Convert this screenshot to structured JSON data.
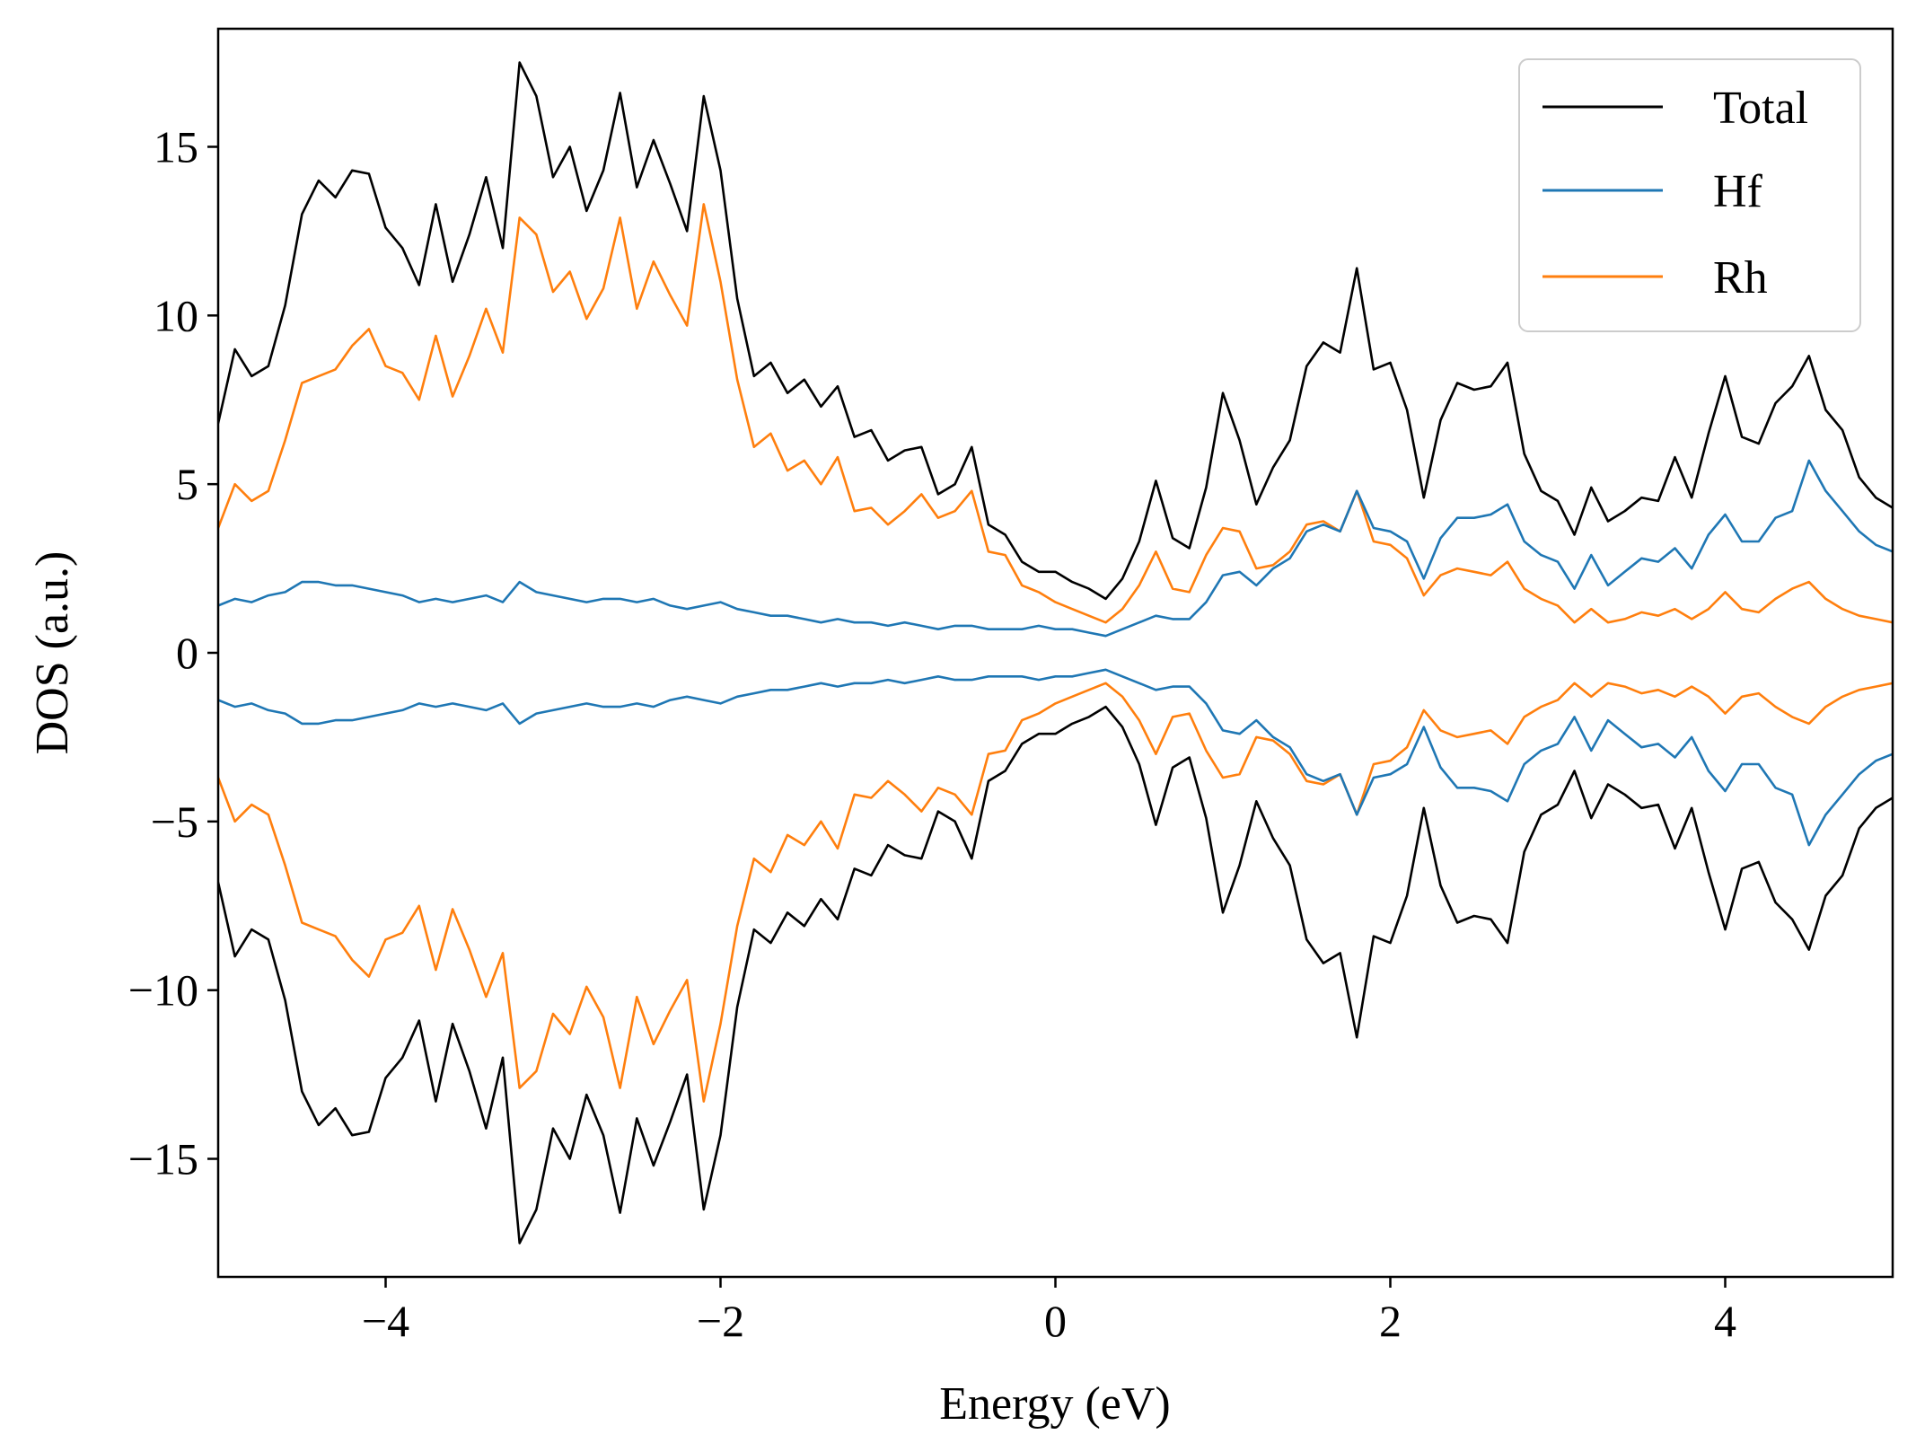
{
  "chart_data": {
    "type": "line",
    "title": "",
    "xlabel": "Energy (eV)",
    "ylabel": "DOS (a.u.)",
    "xlim": [
      -5,
      5
    ],
    "ylim": [
      -18.5,
      18.5
    ],
    "xticks": [
      -4,
      -2,
      0,
      2,
      4
    ],
    "xtick_labels": [
      "−4",
      "−2",
      "0",
      "2",
      "4"
    ],
    "yticks": [
      -15,
      -10,
      -5,
      0,
      5,
      10,
      15
    ],
    "ytick_labels": [
      "−15",
      "−10",
      "−5",
      "0",
      "5",
      "10",
      "15"
    ],
    "grid": false,
    "legend_position": "top-right",
    "note": "spin-down curves are the mirror image (y → −y) of the spin-up values listed",
    "series": [
      {
        "name": "Total",
        "color": "#000000",
        "x": [
          -5.0,
          -4.9,
          -4.8,
          -4.7,
          -4.6,
          -4.5,
          -4.4,
          -4.3,
          -4.2,
          -4.1,
          -4.0,
          -3.9,
          -3.8,
          -3.7,
          -3.6,
          -3.5,
          -3.4,
          -3.3,
          -3.2,
          -3.1,
          -3.0,
          -2.9,
          -2.8,
          -2.7,
          -2.6,
          -2.5,
          -2.4,
          -2.3,
          -2.2,
          -2.1,
          -2.0,
          -1.9,
          -1.8,
          -1.7,
          -1.6,
          -1.5,
          -1.4,
          -1.3,
          -1.2,
          -1.1,
          -1.0,
          -0.9,
          -0.8,
          -0.7,
          -0.6,
          -0.5,
          -0.4,
          -0.3,
          -0.2,
          -0.1,
          0.0,
          0.1,
          0.2,
          0.3,
          0.4,
          0.5,
          0.6,
          0.7,
          0.8,
          0.9,
          1.0,
          1.1,
          1.2,
          1.3,
          1.4,
          1.5,
          1.6,
          1.7,
          1.8,
          1.9,
          2.0,
          2.1,
          2.2,
          2.3,
          2.4,
          2.5,
          2.6,
          2.7,
          2.8,
          2.9,
          3.0,
          3.1,
          3.2,
          3.3,
          3.4,
          3.5,
          3.6,
          3.7,
          3.8,
          3.9,
          4.0,
          4.1,
          4.2,
          4.3,
          4.4,
          4.5,
          4.6,
          4.7,
          4.8,
          4.9,
          5.0
        ],
        "values": [
          6.8,
          9.0,
          8.2,
          8.5,
          10.3,
          13.0,
          14.0,
          13.5,
          14.3,
          14.2,
          12.6,
          12.0,
          10.9,
          13.3,
          11.0,
          12.4,
          14.1,
          12.0,
          17.5,
          16.5,
          14.1,
          15.0,
          13.1,
          14.3,
          16.6,
          13.8,
          15.2,
          13.9,
          12.5,
          16.5,
          14.3,
          10.5,
          8.2,
          8.6,
          7.7,
          8.1,
          7.3,
          7.9,
          6.4,
          6.6,
          5.7,
          6.0,
          6.1,
          4.7,
          5.0,
          6.1,
          3.8,
          3.5,
          2.7,
          2.4,
          2.4,
          2.1,
          1.9,
          1.6,
          2.2,
          3.3,
          5.1,
          3.4,
          3.1,
          4.9,
          7.7,
          6.3,
          4.4,
          5.5,
          6.3,
          8.5,
          9.2,
          8.9,
          11.4,
          8.4,
          8.6,
          7.2,
          4.6,
          6.9,
          8.0,
          7.8,
          7.9,
          8.6,
          5.9,
          4.8,
          4.5,
          3.5,
          4.9,
          3.9,
          4.2,
          4.6,
          4.5,
          5.8,
          4.6,
          6.5,
          8.2,
          6.4,
          6.2,
          7.4,
          7.9,
          8.8,
          7.2,
          6.6,
          5.2,
          4.6,
          4.3
        ]
      },
      {
        "name": "Hf",
        "color": "#1f77b4",
        "x": [
          -5.0,
          -4.9,
          -4.8,
          -4.7,
          -4.6,
          -4.5,
          -4.4,
          -4.3,
          -4.2,
          -4.1,
          -4.0,
          -3.9,
          -3.8,
          -3.7,
          -3.6,
          -3.5,
          -3.4,
          -3.3,
          -3.2,
          -3.1,
          -3.0,
          -2.9,
          -2.8,
          -2.7,
          -2.6,
          -2.5,
          -2.4,
          -2.3,
          -2.2,
          -2.1,
          -2.0,
          -1.9,
          -1.8,
          -1.7,
          -1.6,
          -1.5,
          -1.4,
          -1.3,
          -1.2,
          -1.1,
          -1.0,
          -0.9,
          -0.8,
          -0.7,
          -0.6,
          -0.5,
          -0.4,
          -0.3,
          -0.2,
          -0.1,
          0.0,
          0.1,
          0.2,
          0.3,
          0.4,
          0.5,
          0.6,
          0.7,
          0.8,
          0.9,
          1.0,
          1.1,
          1.2,
          1.3,
          1.4,
          1.5,
          1.6,
          1.7,
          1.8,
          1.9,
          2.0,
          2.1,
          2.2,
          2.3,
          2.4,
          2.5,
          2.6,
          2.7,
          2.8,
          2.9,
          3.0,
          3.1,
          3.2,
          3.3,
          3.4,
          3.5,
          3.6,
          3.7,
          3.8,
          3.9,
          4.0,
          4.1,
          4.2,
          4.3,
          4.4,
          4.5,
          4.6,
          4.7,
          4.8,
          4.9,
          5.0
        ],
        "values": [
          1.4,
          1.6,
          1.5,
          1.7,
          1.8,
          2.1,
          2.1,
          2.0,
          2.0,
          1.9,
          1.8,
          1.7,
          1.5,
          1.6,
          1.5,
          1.6,
          1.7,
          1.5,
          2.1,
          1.8,
          1.7,
          1.6,
          1.5,
          1.6,
          1.6,
          1.5,
          1.6,
          1.4,
          1.3,
          1.4,
          1.5,
          1.3,
          1.2,
          1.1,
          1.1,
          1.0,
          0.9,
          1.0,
          0.9,
          0.9,
          0.8,
          0.9,
          0.8,
          0.7,
          0.8,
          0.8,
          0.7,
          0.7,
          0.7,
          0.8,
          0.7,
          0.7,
          0.6,
          0.5,
          0.7,
          0.9,
          1.1,
          1.0,
          1.0,
          1.5,
          2.3,
          2.4,
          2.0,
          2.5,
          2.8,
          3.6,
          3.8,
          3.6,
          4.8,
          3.7,
          3.6,
          3.3,
          2.2,
          3.4,
          4.0,
          4.0,
          4.1,
          4.4,
          3.3,
          2.9,
          2.7,
          1.9,
          2.9,
          2.0,
          2.4,
          2.8,
          2.7,
          3.1,
          2.5,
          3.5,
          4.1,
          3.3,
          3.3,
          4.0,
          4.2,
          5.7,
          4.8,
          4.2,
          3.6,
          3.2,
          3.0
        ]
      },
      {
        "name": "Rh",
        "color": "#ff7f0e",
        "x": [
          -5.0,
          -4.9,
          -4.8,
          -4.7,
          -4.6,
          -4.5,
          -4.4,
          -4.3,
          -4.2,
          -4.1,
          -4.0,
          -3.9,
          -3.8,
          -3.7,
          -3.6,
          -3.5,
          -3.4,
          -3.3,
          -3.2,
          -3.1,
          -3.0,
          -2.9,
          -2.8,
          -2.7,
          -2.6,
          -2.5,
          -2.4,
          -2.3,
          -2.2,
          -2.1,
          -2.0,
          -1.9,
          -1.8,
          -1.7,
          -1.6,
          -1.5,
          -1.4,
          -1.3,
          -1.2,
          -1.1,
          -1.0,
          -0.9,
          -0.8,
          -0.7,
          -0.6,
          -0.5,
          -0.4,
          -0.3,
          -0.2,
          -0.1,
          0.0,
          0.1,
          0.2,
          0.3,
          0.4,
          0.5,
          0.6,
          0.7,
          0.8,
          0.9,
          1.0,
          1.1,
          1.2,
          1.3,
          1.4,
          1.5,
          1.6,
          1.7,
          1.8,
          1.9,
          2.0,
          2.1,
          2.2,
          2.3,
          2.4,
          2.5,
          2.6,
          2.7,
          2.8,
          2.9,
          3.0,
          3.1,
          3.2,
          3.3,
          3.4,
          3.5,
          3.6,
          3.7,
          3.8,
          3.9,
          4.0,
          4.1,
          4.2,
          4.3,
          4.4,
          4.5,
          4.6,
          4.7,
          4.8,
          4.9,
          5.0
        ],
        "values": [
          3.7,
          5.0,
          4.5,
          4.8,
          6.3,
          8.0,
          8.2,
          8.4,
          9.1,
          9.6,
          8.5,
          8.3,
          7.5,
          9.4,
          7.6,
          8.8,
          10.2,
          8.9,
          12.9,
          12.4,
          10.7,
          11.3,
          9.9,
          10.8,
          12.9,
          10.2,
          11.6,
          10.6,
          9.7,
          13.3,
          11.0,
          8.1,
          6.1,
          6.5,
          5.4,
          5.7,
          5.0,
          5.8,
          4.2,
          4.3,
          3.8,
          4.2,
          4.7,
          4.0,
          4.2,
          4.8,
          3.0,
          2.9,
          2.0,
          1.8,
          1.5,
          1.3,
          1.1,
          0.9,
          1.3,
          2.0,
          3.0,
          1.9,
          1.8,
          2.9,
          3.7,
          3.6,
          2.5,
          2.6,
          3.0,
          3.8,
          3.9,
          3.6,
          4.8,
          3.3,
          3.2,
          2.8,
          1.7,
          2.3,
          2.5,
          2.4,
          2.3,
          2.7,
          1.9,
          1.6,
          1.4,
          0.9,
          1.3,
          0.9,
          1.0,
          1.2,
          1.1,
          1.3,
          1.0,
          1.3,
          1.8,
          1.3,
          1.2,
          1.6,
          1.9,
          2.1,
          1.6,
          1.3,
          1.1,
          1.0,
          0.9
        ]
      }
    ]
  }
}
